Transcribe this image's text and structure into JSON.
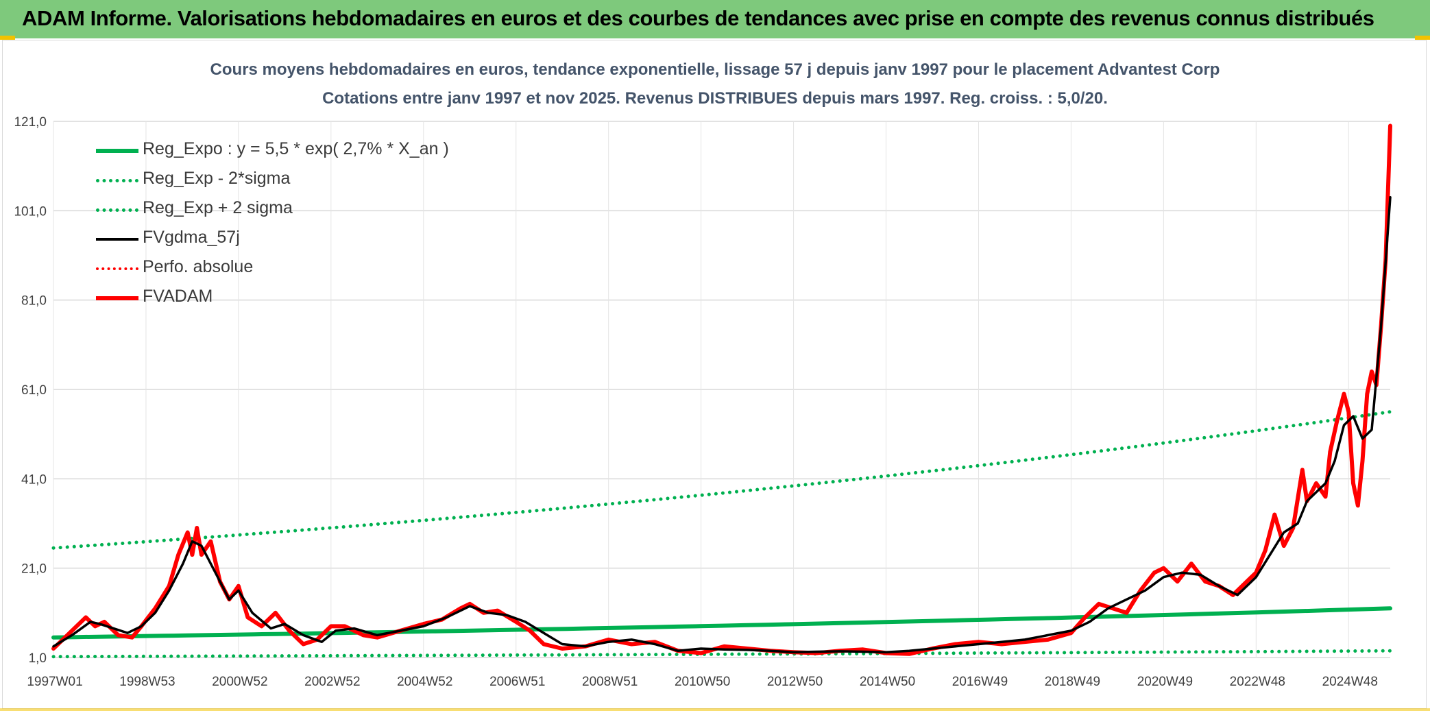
{
  "header": {
    "title": "ADAM Informe. Valorisations hebdomadaires en euros et des courbes de tendances avec prise en compte des revenus connus distribués"
  },
  "colors": {
    "header_bg": "#7ec97c",
    "reg_expo": "#00b050",
    "fvgdma": "#000000",
    "fvadam": "#ff0000",
    "title_text": "#44546a"
  },
  "chart_data": {
    "type": "line",
    "title": "Cours moyens hebdomadaires en euros, tendance exponentielle, lissage 57 j depuis janv 1997 pour le placement Advantest Corp",
    "subtitle": "Cotations entre janv 1997 et nov 2025. Revenus DISTRIBUES depuis mars 1997. Reg. croiss. : 5,0/20.",
    "xlabel": "",
    "ylabel": "",
    "ylim": [
      1,
      121
    ],
    "y_ticks": [
      "121,0",
      "101,0",
      "81,0",
      "61,0",
      "41,0",
      "21,0",
      "1,0"
    ],
    "y_tick_values": [
      121,
      101,
      81,
      61,
      41,
      21,
      1
    ],
    "x_ticks": [
      "1997W01",
      "1998W53",
      "2000W52",
      "2002W52",
      "2004W52",
      "2006W51",
      "2008W51",
      "2010W50",
      "2012W50",
      "2014W50",
      "2016W49",
      "2018W49",
      "2020W49",
      "2022W48",
      "2024W48"
    ],
    "x_tick_years": [
      1997.0,
      1999.0,
      2001.0,
      2003.0,
      2005.0,
      2007.0,
      2009.0,
      2011.0,
      2013.0,
      2015.0,
      2017.0,
      2019.0,
      2021.0,
      2023.0,
      2025.0
    ],
    "xlim": [
      1997.0,
      2025.9
    ],
    "grid": true,
    "legend_position": "top-left",
    "series": [
      {
        "name": "Reg_Expo : y = 5,5 * exp( 2,7% *  X_an )",
        "style": "solid-thick",
        "color": "#00b050",
        "x": [
          1997.0,
          2025.9
        ],
        "y": [
          5.5,
          12.0
        ]
      },
      {
        "name": "Reg_Exp - 2*sigma",
        "style": "dotted",
        "color": "#00b050",
        "x": [
          1997.0,
          2025.9
        ],
        "y": [
          1.2,
          2.5
        ]
      },
      {
        "name": "Reg_Exp + 2 sigma",
        "style": "dotted",
        "color": "#00b050",
        "x": [
          1997.0,
          2025.9
        ],
        "y": [
          25.5,
          56.0
        ]
      },
      {
        "name": "FVgdma_57j",
        "style": "solid",
        "color": "#000000",
        "x": [
          1997.0,
          1997.4,
          1997.8,
          1998.0,
          1998.3,
          1998.6,
          1998.9,
          1999.2,
          1999.5,
          1999.8,
          2000.0,
          2000.2,
          2000.5,
          2000.8,
          2001.0,
          2001.3,
          2001.7,
          2002.0,
          2002.4,
          2002.8,
          2003.1,
          2003.5,
          2004.0,
          2004.5,
          2005.0,
          2005.5,
          2006.0,
          2006.4,
          2006.8,
          2007.2,
          2007.6,
          2008.0,
          2008.5,
          2009.0,
          2009.5,
          2010.0,
          2010.5,
          2011.0,
          2011.5,
          2012.0,
          2012.5,
          2013.0,
          2013.5,
          2014.0,
          2014.5,
          2015.0,
          2015.5,
          2016.0,
          2016.5,
          2017.0,
          2017.5,
          2018.0,
          2018.5,
          2019.0,
          2019.4,
          2019.8,
          2020.2,
          2020.6,
          2021.0,
          2021.4,
          2021.8,
          2022.2,
          2022.6,
          2023.0,
          2023.3,
          2023.6,
          2023.9,
          2024.1,
          2024.3,
          2024.5,
          2024.7,
          2024.9,
          2025.1,
          2025.3,
          2025.5,
          2025.7,
          2025.9
        ],
        "y": [
          3.5,
          6.0,
          9.0,
          8.5,
          7.5,
          6.5,
          8.0,
          11.0,
          16.0,
          22.0,
          27.0,
          26.0,
          20.0,
          14.0,
          16.0,
          11.0,
          7.5,
          8.5,
          6.0,
          4.5,
          7.0,
          7.5,
          6.0,
          7.0,
          8.0,
          10.0,
          12.5,
          11.0,
          10.5,
          9.0,
          6.5,
          4.0,
          3.5,
          4.5,
          5.0,
          4.0,
          2.5,
          3.0,
          2.8,
          2.7,
          2.5,
          2.2,
          2.3,
          2.4,
          2.3,
          2.2,
          2.5,
          3.0,
          3.5,
          4.0,
          4.5,
          5.0,
          6.0,
          7.0,
          9.0,
          12.0,
          14.0,
          16.0,
          19.0,
          20.0,
          19.5,
          17.0,
          15.0,
          19.0,
          24.0,
          29.0,
          31.0,
          36.0,
          38.0,
          40.0,
          45.0,
          53.0,
          55.0,
          50.0,
          52.0,
          75.0,
          104.0
        ]
      },
      {
        "name": "Perfo. absolue",
        "style": "dotted",
        "color": "#ff0000",
        "x": [],
        "y": []
      },
      {
        "name": "FVADAM",
        "style": "solid-thick",
        "color": "#ff0000",
        "x": [
          1997.0,
          1997.4,
          1997.7,
          1997.9,
          1998.1,
          1998.4,
          1998.7,
          1998.9,
          1999.2,
          1999.5,
          1999.7,
          1999.9,
          2000.0,
          2000.1,
          2000.2,
          2000.4,
          2000.6,
          2000.8,
          2001.0,
          2001.2,
          2001.5,
          2001.8,
          2002.1,
          2002.4,
          2002.7,
          2003.0,
          2003.3,
          2003.7,
          2004.0,
          2004.5,
          2005.0,
          2005.4,
          2005.8,
          2006.0,
          2006.3,
          2006.6,
          2007.0,
          2007.3,
          2007.6,
          2008.0,
          2008.5,
          2009.0,
          2009.5,
          2010.0,
          2010.5,
          2011.0,
          2011.5,
          2012.0,
          2012.5,
          2013.0,
          2013.5,
          2014.0,
          2014.5,
          2015.0,
          2015.5,
          2016.0,
          2016.5,
          2017.0,
          2017.5,
          2018.0,
          2018.5,
          2019.0,
          2019.3,
          2019.6,
          2019.9,
          2020.2,
          2020.5,
          2020.8,
          2021.0,
          2021.3,
          2021.6,
          2021.9,
          2022.2,
          2022.5,
          2022.8,
          2023.0,
          2023.2,
          2023.4,
          2023.6,
          2023.8,
          2024.0,
          2024.1,
          2024.3,
          2024.5,
          2024.6,
          2024.75,
          2024.9,
          2025.0,
          2025.1,
          2025.2,
          2025.3,
          2025.4,
          2025.5,
          2025.6,
          2025.7,
          2025.8,
          2025.9
        ],
        "y": [
          3.0,
          7.0,
          10.0,
          8.0,
          9.0,
          6.0,
          5.5,
          8.0,
          12.0,
          17.0,
          24.0,
          29.0,
          24.0,
          30.0,
          24.0,
          27.0,
          18.0,
          14.0,
          17.0,
          10.0,
          8.0,
          11.0,
          7.0,
          4.0,
          5.0,
          8.0,
          8.0,
          6.0,
          5.5,
          7.0,
          8.5,
          9.5,
          12.0,
          13.0,
          11.0,
          11.5,
          9.0,
          7.0,
          4.0,
          3.0,
          3.5,
          5.0,
          4.0,
          4.5,
          2.5,
          2.0,
          3.5,
          3.0,
          2.5,
          2.2,
          2.0,
          2.5,
          2.8,
          2.0,
          1.8,
          3.0,
          4.0,
          4.5,
          4.0,
          4.5,
          5.0,
          6.5,
          10.0,
          13.0,
          12.0,
          11.0,
          16.0,
          20.0,
          21.0,
          18.0,
          22.0,
          18.0,
          17.0,
          15.0,
          18.0,
          20.0,
          25.0,
          33.0,
          26.0,
          30.0,
          43.0,
          36.0,
          40.0,
          37.0,
          47.0,
          54.0,
          60.0,
          56.0,
          40.0,
          35.0,
          45.0,
          60.0,
          65.0,
          62.0,
          75.0,
          90.0,
          120.0
        ]
      }
    ]
  }
}
